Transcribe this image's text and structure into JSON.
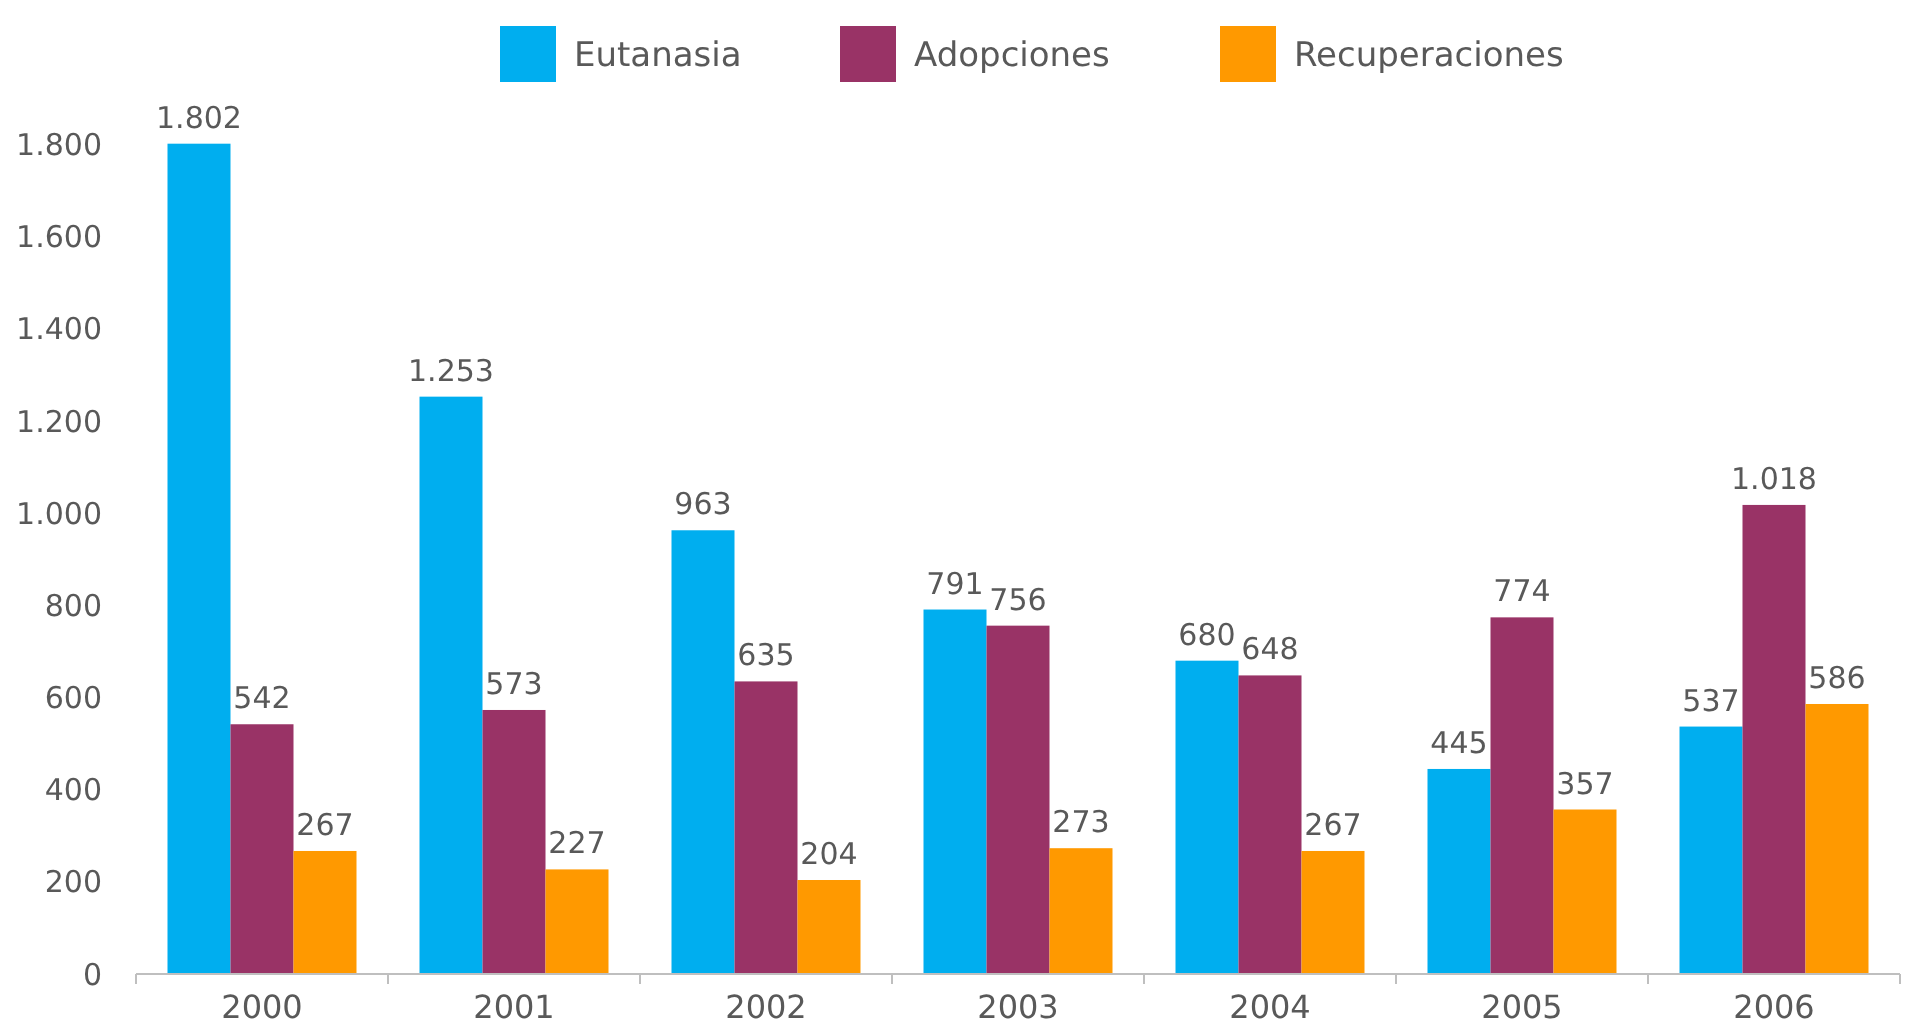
{
  "chart_data": {
    "type": "bar",
    "categories": [
      "2000",
      "2001",
      "2002",
      "2003",
      "2004",
      "2005",
      "2006"
    ],
    "series": [
      {
        "name": "Eutanasia",
        "color": "#00aeef",
        "values": [
          1802,
          1253,
          963,
          791,
          680,
          445,
          537
        ],
        "value_labels": [
          "1.802",
          "1.253",
          "963",
          "791",
          "680",
          "445",
          "537"
        ]
      },
      {
        "name": "Adopciones",
        "color": "#993366",
        "values": [
          542,
          573,
          635,
          756,
          648,
          774,
          1018
        ],
        "value_labels": [
          "542",
          "573",
          "635",
          "756",
          "648",
          "774",
          "1.018"
        ]
      },
      {
        "name": "Recuperaciones",
        "color": "#ff9900",
        "values": [
          267,
          227,
          204,
          273,
          267,
          357,
          586
        ],
        "value_labels": [
          "267",
          "227",
          "204",
          "273",
          "267",
          "357",
          "586"
        ]
      }
    ],
    "ylim": [
      0,
      1810
    ],
    "yticks": [
      0,
      200,
      400,
      600,
      800,
      {
        "value": 1000,
        "label": "1.000"
      },
      {
        "value": 1200,
        "label": "1.200"
      },
      {
        "value": 1400,
        "label": "1.400"
      },
      {
        "value": 1600,
        "label": "1.600"
      },
      {
        "value": 1800,
        "label": "1.800"
      }
    ],
    "legend": "top",
    "grid": false
  }
}
